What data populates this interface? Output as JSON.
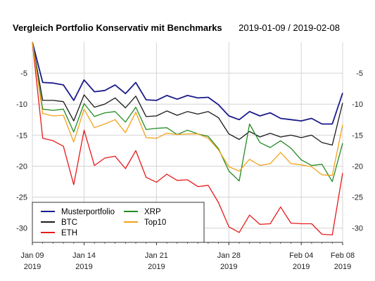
{
  "chart_data": {
    "type": "line",
    "title": "Vergleich Portfolio Konservativ mit Benchmarks",
    "subtitle": "2019-01-09 / 2019-02-08",
    "x_ticks": [
      {
        "date": "2019-01-09",
        "line1": "Jan 09",
        "line2": "2019"
      },
      {
        "date": "2019-01-14",
        "line1": "Jan 14",
        "line2": "2019"
      },
      {
        "date": "2019-01-21",
        "line1": "Jan 21",
        "line2": "2019"
      },
      {
        "date": "2019-01-28",
        "line1": "Jan 28",
        "line2": "2019"
      },
      {
        "date": "2019-02-04",
        "line1": "Feb 04",
        "line2": "2019"
      },
      {
        "date": "2019-02-08",
        "line1": "Feb 08",
        "line2": "2019"
      }
    ],
    "y_ticks": [
      -5,
      -10,
      -15,
      -20,
      -25,
      -30
    ],
    "ylim": [
      -32.3,
      0
    ],
    "xlim": [
      "2019-01-09",
      "2019-02-08"
    ],
    "grid": true,
    "legend_position": "bottom-left",
    "x": [
      "2019-01-09",
      "2019-01-10",
      "2019-01-11",
      "2019-01-12",
      "2019-01-13",
      "2019-01-14",
      "2019-01-15",
      "2019-01-16",
      "2019-01-17",
      "2019-01-18",
      "2019-01-19",
      "2019-01-20",
      "2019-01-21",
      "2019-01-22",
      "2019-01-23",
      "2019-01-24",
      "2019-01-25",
      "2019-01-26",
      "2019-01-27",
      "2019-01-28",
      "2019-01-29",
      "2019-01-30",
      "2019-01-31",
      "2019-02-01",
      "2019-02-02",
      "2019-02-03",
      "2019-02-04",
      "2019-02-05",
      "2019-02-06",
      "2019-02-07",
      "2019-02-08"
    ],
    "series": [
      {
        "name": "Musterportfolio",
        "color": "#1a1a8c",
        "values": [
          0,
          -6.5,
          -6.6,
          -6.9,
          -9.4,
          -6.1,
          -8.0,
          -7.8,
          -6.9,
          -8.3,
          -6.5,
          -9.3,
          -9.4,
          -8.6,
          -9.2,
          -8.6,
          -9.0,
          -8.9,
          -10.1,
          -11.9,
          -12.5,
          -11.2,
          -11.9,
          -11.4,
          -12.3,
          -12.5,
          -12.7,
          -12.3,
          -13.2,
          -13.2,
          -8.2
        ]
      },
      {
        "name": "BTC",
        "color": "#1a1a1a",
        "values": [
          0,
          -9.4,
          -9.4,
          -9.6,
          -12.7,
          -8.5,
          -10.5,
          -10.0,
          -9.0,
          -10.6,
          -8.7,
          -12.0,
          -11.9,
          -11.1,
          -11.8,
          -11.2,
          -11.6,
          -11.2,
          -12.2,
          -14.8,
          -15.7,
          -14.4,
          -15.3,
          -14.7,
          -15.3,
          -15.0,
          -15.4,
          -15.0,
          -16.2,
          -16.6,
          -9.8
        ]
      },
      {
        "name": "ETH",
        "color": "#e8191a",
        "values": [
          0,
          -15.5,
          -15.9,
          -16.8,
          -23.0,
          -14.2,
          -19.9,
          -18.7,
          -18.4,
          -20.4,
          -17.5,
          -21.8,
          -22.6,
          -21.3,
          -22.3,
          -22.2,
          -23.3,
          -23.1,
          -25.9,
          -29.8,
          -30.7,
          -27.9,
          -29.4,
          -29.3,
          -26.6,
          -29.2,
          -29.3,
          -29.3,
          -31.0,
          -31.1,
          -21.1
        ]
      },
      {
        "name": "XRP",
        "color": "#238b23",
        "values": [
          0,
          -10.8,
          -11.0,
          -10.8,
          -14.5,
          -9.9,
          -12.0,
          -11.4,
          -11.2,
          -12.9,
          -10.5,
          -14.1,
          -13.9,
          -13.8,
          -14.9,
          -14.2,
          -14.8,
          -15.2,
          -17.2,
          -20.8,
          -22.4,
          -13.2,
          -16.2,
          -17.0,
          -15.9,
          -17.1,
          -19.0,
          -19.9,
          -19.7,
          -22.5,
          -16.3
        ]
      },
      {
        "name": "Top10",
        "color": "#f2a31b",
        "values": [
          0,
          -11.5,
          -11.9,
          -11.8,
          -16.1,
          -10.8,
          -13.8,
          -13.2,
          -12.5,
          -14.6,
          -11.3,
          -15.4,
          -15.5,
          -14.7,
          -14.9,
          -14.8,
          -14.8,
          -15.5,
          -17.4,
          -20.1,
          -20.8,
          -18.9,
          -19.9,
          -19.6,
          -17.8,
          -19.6,
          -19.8,
          -20.1,
          -21.4,
          -21.5,
          -13.3
        ]
      }
    ],
    "legend_order": [
      "Musterportfolio",
      "BTC",
      "ETH",
      "XRP",
      "Top10"
    ]
  }
}
